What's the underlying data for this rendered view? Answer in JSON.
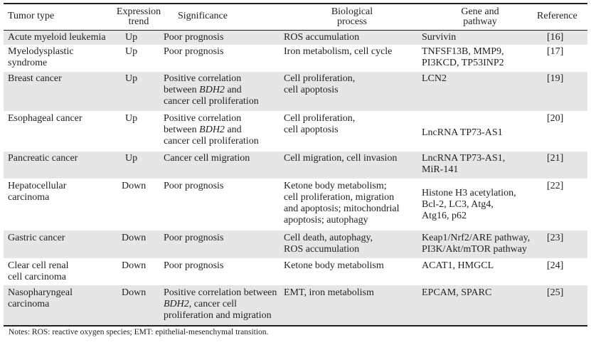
{
  "headers": {
    "tumor_type": "Tumor type",
    "expression_trend": "Expression\ntrend",
    "significance": "Significance",
    "biological_process": "Biological\nprocess",
    "gene_pathway": "Gene and\npathway",
    "reference": "Reference"
  },
  "rows": [
    {
      "tumor": "Acute myeloid leukemia",
      "trend": "Up",
      "significance": "Poor prognosis",
      "process": "ROS accumulation",
      "gene": "Survivin",
      "ref": "[16]"
    },
    {
      "tumor": "Myelodysplastic\n syndrome",
      "trend": "Up",
      "significance": "Poor prognosis",
      "process": "Iron metabolism, cell cycle",
      "gene": "TNFSF13B, MMP9,\nPI3KCD, TP53INP2",
      "ref": "[17]"
    },
    {
      "tumor": "Breast cancer",
      "trend": "Up",
      "sig_pre": "Positive correlation\n between ",
      "sig_gene": "BDH2",
      "sig_post": " and\n cancer cell proliferation",
      "process": "Cell proliferation,\ncell apoptosis",
      "gene": "LCN2",
      "ref": "[19]"
    },
    {
      "tumor": "Esophageal cancer",
      "trend": "Up",
      "sig_pre": "Positive correlation\n between ",
      "sig_gene": "BDH2",
      "sig_post": " and\n cancer cell proliferation",
      "process": "Cell proliferation,\ncell apoptosis",
      "gene": "LncRNA TP73-AS1",
      "ref": "[20]"
    },
    {
      "tumor": "Pancreatic cancer",
      "trend": "Up",
      "significance": "Cancer cell migration",
      "process": "Cell migration, cell invasion",
      "gene": "LncRNA TP73-AS1,\n MiR-141",
      "ref": "[21]"
    },
    {
      "tumor": "Hepatocellular\n carcinoma",
      "trend": "Down",
      "significance": "Poor prognosis",
      "process": "Ketone body metabolism;\n cell proliferation, migration\n and apoptosis; mitochondrial\n apoptosis; autophagy",
      "gene": "Histone H3 acetylation,\nBcl-2, LC3, Atg4,\nAtg16, p62",
      "ref": "[22]"
    },
    {
      "tumor": "Gastric cancer",
      "trend": "Down",
      "significance": "Poor prognosis",
      "process": "Cell death, autophagy,\nROS accumulation",
      "gene": "Keap1/Nrf2/ARE pathway,\nPI3K/Akt/mTOR pathway",
      "ref": "[23]"
    },
    {
      "tumor": "Clear cell renal\n cell carcinoma",
      "trend": "Down",
      "significance": "Poor prognosis",
      "process": "Ketone body metabolism",
      "gene": "ACAT1, HMGCL",
      "ref": "[24]"
    },
    {
      "tumor": "Nasopharyngeal\n carcinoma",
      "trend": "Down",
      "sig_pre": "Positive correlation between\n",
      "sig_gene": "BDH2",
      "sig_post": ", cancer cell\nproliferation and migration",
      "process": "EMT, iron metabolism",
      "gene": "EPCAM, SPARC",
      "ref": "[25]"
    }
  ],
  "notes": "Notes: ROS: reactive oxygen species; EMT: epithelial-mesenchymal transition."
}
